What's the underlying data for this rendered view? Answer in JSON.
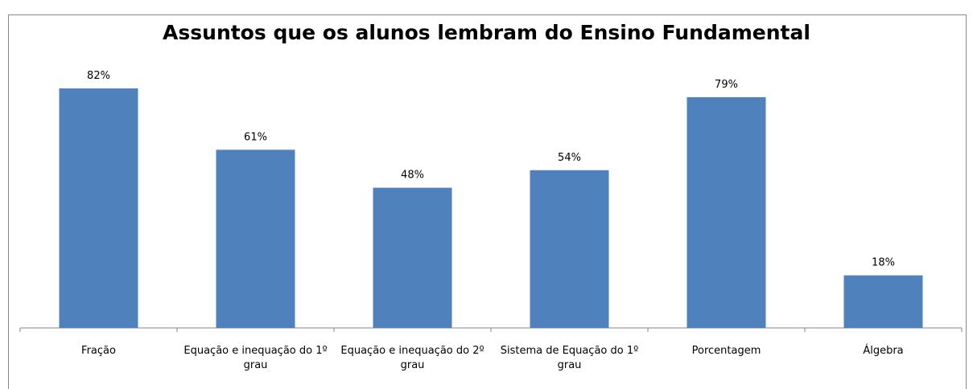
{
  "chart_data": {
    "type": "bar",
    "title": "Assuntos que os alunos lembram do Ensino Fundamental",
    "categories": [
      "Fração",
      "Equação e inequação do 1º grau",
      "Equação e inequação do 2º grau",
      "Sistema de Equação do 1º grau",
      "Porcentagem",
      "Álgebra"
    ],
    "values": [
      82,
      61,
      48,
      54,
      79,
      18
    ],
    "value_labels": [
      "82%",
      "61%",
      "48%",
      "54%",
      "79%",
      "18%"
    ],
    "color": "#4f81bd"
  }
}
